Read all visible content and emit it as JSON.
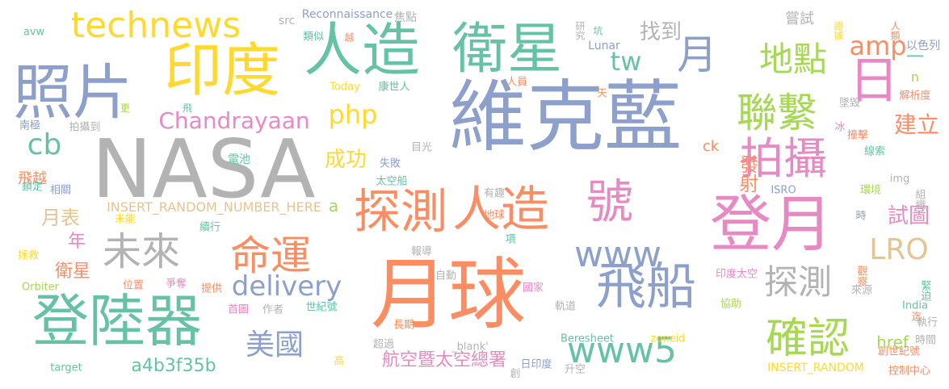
{
  "palette": {
    "orange": "#fc8d62",
    "teal": "#66c2a5",
    "blue": "#8da0cb",
    "pink": "#e78ac3",
    "green": "#a6d854",
    "yellow": "#ffd92f",
    "tan": "#e5c494",
    "gray": "#b3b3b3"
  },
  "words": [
    {
      "text": "維克藍",
      "color": "blue"
    },
    {
      "text": "NASA",
      "color": "gray"
    },
    {
      "text": "月球",
      "color": "orange"
    },
    {
      "text": "登月",
      "color": "pink"
    },
    {
      "text": "登陸器",
      "color": "teal"
    },
    {
      "text": "照片",
      "color": "blue"
    },
    {
      "text": "印度",
      "color": "yellow"
    },
    {
      "text": "人造",
      "color": "teal"
    },
    {
      "text": "衛星",
      "color": "teal"
    },
    {
      "text": "探測",
      "color": "orange"
    },
    {
      "text": "人造",
      "color": "orange"
    },
    {
      "text": "號",
      "color": "pink"
    },
    {
      "text": "飛船",
      "color": "blue"
    },
    {
      "text": "拍攝",
      "color": "pink"
    },
    {
      "text": "日",
      "color": "pink"
    },
    {
      "text": "月",
      "color": "blue"
    },
    {
      "text": "technews",
      "color": "yellow"
    },
    {
      "text": "命運",
      "color": "orange"
    },
    {
      "text": "聯繫",
      "color": "green"
    },
    {
      "text": "確認",
      "color": "green"
    },
    {
      "text": "地點",
      "color": "green"
    },
    {
      "text": "未來",
      "color": "gray"
    },
    {
      "text": "探測",
      "color": "gray"
    },
    {
      "text": "www5",
      "color": "teal"
    },
    {
      "text": "www",
      "color": "blue"
    },
    {
      "text": "delivery",
      "color": "blue"
    },
    {
      "text": "美國",
      "color": "blue"
    },
    {
      "text": "amp",
      "color": "orange"
    },
    {
      "text": "tw",
      "color": "teal"
    },
    {
      "text": "Chandrayaan",
      "color": "pink"
    },
    {
      "text": "php",
      "color": "yellow"
    },
    {
      "text": "LRO",
      "color": "tan"
    },
    {
      "text": "cb",
      "color": "teal"
    },
    {
      "text": "找到",
      "color": "gray"
    },
    {
      "text": "建立",
      "color": "orange"
    },
    {
      "text": "成功",
      "color": "yellow"
    },
    {
      "text": "發射",
      "color": "orange"
    },
    {
      "text": "試圖",
      "color": "pink"
    },
    {
      "text": "航空暨太空總署",
      "color": "pink"
    },
    {
      "text": "a4b3f35b",
      "color": "teal"
    },
    {
      "text": "月表",
      "color": "tan"
    },
    {
      "text": "年",
      "color": "pink"
    },
    {
      "text": "衛星",
      "color": "orange"
    },
    {
      "text": "飛越",
      "color": "orange"
    },
    {
      "text": "href",
      "color": "green"
    },
    {
      "text": "ck",
      "color": "orange"
    },
    {
      "text": "a",
      "color": "green"
    },
    {
      "text": "一",
      "color": "teal"
    },
    {
      "text": "n",
      "color": "green"
    },
    {
      "text": "嘗試",
      "color": "gray"
    },
    {
      "text": "INSERT_RANDOM_NUMBER_HERE",
      "color": "tan"
    },
    {
      "text": "INSERT_RANDOM",
      "color": "yellow"
    },
    {
      "text": "Reconnaissance",
      "color": "blue"
    },
    {
      "text": "avw",
      "color": "teal"
    },
    {
      "text": "src",
      "color": "gray"
    },
    {
      "text": "焦點",
      "color": "gray"
    },
    {
      "text": "研究",
      "color": "gray"
    },
    {
      "text": "坑",
      "color": "teal"
    },
    {
      "text": "Lunar",
      "color": "blue"
    },
    {
      "text": "證據",
      "color": "yellow"
    },
    {
      "text": "人類",
      "color": "orange"
    },
    {
      "text": "以色列",
      "color": "blue"
    },
    {
      "text": "類似",
      "color": "teal"
    },
    {
      "text": "越",
      "color": "orange"
    },
    {
      "text": "Today",
      "color": "yellow"
    },
    {
      "text": "康世人",
      "color": "teal"
    },
    {
      "text": "天",
      "color": "orange"
    },
    {
      "text": "人員",
      "color": "orange"
    },
    {
      "text": "更",
      "color": "green"
    },
    {
      "text": "飛",
      "color": "teal"
    },
    {
      "text": "南極",
      "color": "blue"
    },
    {
      "text": "拍攝到",
      "color": "gray"
    },
    {
      "text": "解析度",
      "color": "orange"
    },
    {
      "text": "墜毀",
      "color": "gray"
    },
    {
      "text": "冰",
      "color": "pink"
    },
    {
      "text": "撞擊",
      "color": "orange"
    },
    {
      "text": "線索",
      "color": "teal"
    },
    {
      "text": "目光",
      "color": "gray"
    },
    {
      "text": "電池",
      "color": "teal"
    },
    {
      "text": "失敗",
      "color": "blue"
    },
    {
      "text": "鎖定",
      "color": "teal"
    },
    {
      "text": "相關",
      "color": "blue"
    },
    {
      "text": "太空船",
      "color": "teal"
    },
    {
      "text": "img",
      "color": "gray"
    },
    {
      "text": "有趣",
      "color": "gray"
    },
    {
      "text": "環境",
      "color": "green"
    },
    {
      "text": "ISRO",
      "color": "blue"
    },
    {
      "text": "組織",
      "color": "gray"
    },
    {
      "text": "地球",
      "color": "orange"
    },
    {
      "text": "未能",
      "color": "yellow"
    },
    {
      "text": "續行",
      "color": "teal"
    },
    {
      "text": "時",
      "color": "blue"
    },
    {
      "text": "拯救",
      "color": "yellow"
    },
    {
      "text": "項",
      "color": "teal"
    },
    {
      "text": "報導",
      "color": "gray"
    },
    {
      "text": "位置",
      "color": "orange"
    },
    {
      "text": "爭奪",
      "color": "pink"
    },
    {
      "text": "提供",
      "color": "orange"
    },
    {
      "text": "自動",
      "color": "gray"
    },
    {
      "text": "印度太空",
      "color": "pink"
    },
    {
      "text": "觀察",
      "color": "orange"
    },
    {
      "text": "Orbiter",
      "color": "green"
    },
    {
      "text": "首圖",
      "color": "pink"
    },
    {
      "text": "作者",
      "color": "gray"
    },
    {
      "text": "世紀號",
      "color": "teal"
    },
    {
      "text": "國家",
      "color": "pink"
    },
    {
      "text": "來源",
      "color": "gray"
    },
    {
      "text": "緊迫",
      "color": "teal"
    },
    {
      "text": "軌道",
      "color": "gray"
    },
    {
      "text": "協助",
      "color": "green"
    },
    {
      "text": "India",
      "color": "teal"
    },
    {
      "text": "迄",
      "color": "orange"
    },
    {
      "text": "執行",
      "color": "gray"
    },
    {
      "text": "超過",
      "color": "gray"
    },
    {
      "text": "長期",
      "color": "orange"
    },
    {
      "text": "Beresheet",
      "color": "teal"
    },
    {
      "text": "zoneid",
      "color": "yellow"
    },
    {
      "text": "_blank'",
      "color": "gray"
    },
    {
      "text": "時間",
      "color": "gray"
    },
    {
      "text": "創世紀號",
      "color": "orange"
    },
    {
      "text": "target",
      "color": "teal"
    },
    {
      "text": "高",
      "color": "yellow"
    },
    {
      "text": "日印度",
      "color": "blue"
    },
    {
      "text": "升空",
      "color": "gray"
    },
    {
      "text": "控制中心",
      "color": "orange"
    },
    {
      "text": "創",
      "color": "gray"
    }
  ]
}
